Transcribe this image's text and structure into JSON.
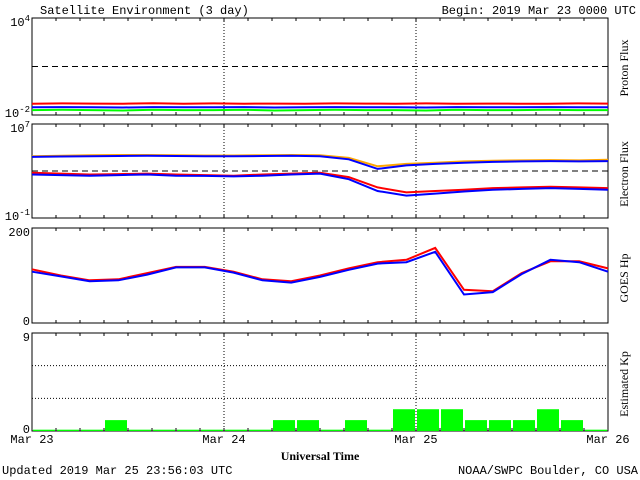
{
  "header": {
    "title": "Satellite Environment (3 day)",
    "begin": "Begin:  2019 Mar 23 0000 UTC"
  },
  "footer": {
    "updated": "Updated 2019 Mar 25 23:56:03 UTC",
    "credit": "NOAA/SWPC Boulder, CO USA",
    "xaxis_title": "Universal Time"
  },
  "x_ticks": [
    "Mar 23",
    "Mar 24",
    "Mar 25",
    "Mar 26"
  ],
  "colors": {
    "red": "#ff0000",
    "blue": "#0000ff",
    "green": "#00ff00",
    "orange": "#ffa500",
    "kp": "#00ff00"
  },
  "chart_data": [
    {
      "type": "line",
      "ylabel": "Proton Flux",
      "y_scale": "log",
      "ylim": [
        0.01,
        10000
      ],
      "ytick_labels": [
        "10^4",
        "10^-2"
      ],
      "x_range_days": [
        0,
        3
      ],
      "threshold": 10,
      "series": [
        {
          "color": "#ff0000",
          "values": [
            0.05,
            0.052,
            0.051,
            0.05,
            0.053,
            0.05,
            0.052,
            0.05,
            0.051,
            0.05,
            0.052,
            0.051,
            0.05,
            0.052,
            0.05,
            0.051,
            0.05,
            0.05,
            0.052,
            0.051
          ]
        },
        {
          "color": "#0000ff",
          "values": [
            0.03,
            0.031,
            0.03,
            0.029,
            0.031,
            0.03,
            0.03,
            0.031,
            0.029,
            0.03,
            0.031,
            0.03,
            0.03,
            0.029,
            0.031,
            0.03,
            0.03,
            0.031,
            0.03,
            0.03
          ]
        },
        {
          "color": "#00ff00",
          "values": [
            0.02,
            0.021,
            0.02,
            0.019,
            0.021,
            0.02,
            0.02,
            0.021,
            0.019,
            0.02,
            0.021,
            0.02,
            0.02,
            0.019,
            0.021,
            0.02,
            0.02,
            0.021,
            0.02,
            0.02
          ]
        }
      ]
    },
    {
      "type": "line",
      "ylabel": "Electron Flux",
      "y_scale": "log",
      "ylim": [
        0.1,
        10000000
      ],
      "ytick_labels": [
        "10^7",
        "10^-1"
      ],
      "x_range_days": [
        0,
        3
      ],
      "threshold": 1000,
      "series": [
        {
          "color": "#ffa500",
          "values": [
            18000,
            20000,
            22000,
            23000,
            23000,
            22000,
            21000,
            21000,
            22000,
            23000,
            22000,
            13000,
            2500,
            4000,
            5000,
            6500,
            7500,
            8000,
            8500,
            8000,
            9000
          ]
        },
        {
          "color": "#0000ff",
          "values": [
            16000,
            17000,
            18000,
            19000,
            20000,
            19000,
            18000,
            18000,
            19000,
            20000,
            18000,
            10000,
            1500,
            3000,
            4000,
            5000,
            6000,
            6500,
            7000,
            6500,
            7000
          ]
        },
        {
          "color": "#ff0000",
          "values": [
            700,
            600,
            500,
            550,
            600,
            500,
            450,
            400,
            500,
            600,
            700,
            300,
            40,
            15,
            20,
            25,
            35,
            40,
            45,
            40,
            35
          ]
        },
        {
          "color": "#0000ff",
          "values": [
            500,
            450,
            400,
            450,
            500,
            400,
            380,
            350,
            400,
            500,
            600,
            200,
            20,
            8,
            12,
            18,
            25,
            30,
            35,
            30,
            25
          ]
        }
      ]
    },
    {
      "type": "line",
      "ylabel": "GOES Hp",
      "ylim": [
        0,
        200
      ],
      "ytick_labels": [
        "200",
        "0"
      ],
      "x_range_days": [
        0,
        3
      ],
      "series": [
        {
          "color": "#ff0000",
          "values": [
            113,
            100,
            90,
            92,
            105,
            118,
            118,
            108,
            92,
            88,
            100,
            115,
            128,
            133,
            158,
            70,
            67,
            105,
            130,
            130,
            115
          ]
        },
        {
          "color": "#0000ff",
          "values": [
            108,
            98,
            88,
            90,
            102,
            117,
            117,
            106,
            90,
            85,
            97,
            112,
            125,
            128,
            150,
            60,
            65,
            103,
            133,
            128,
            108
          ]
        }
      ]
    },
    {
      "type": "bar",
      "ylabel": "Estimated Kp",
      "ylim": [
        0,
        9
      ],
      "ytick_labels": [
        "9",
        "0"
      ],
      "x_range_days": [
        0,
        3
      ],
      "values": [
        0,
        0,
        0,
        1,
        0,
        0,
        0,
        0,
        0,
        0,
        1,
        1,
        0,
        1,
        0,
        2,
        2,
        2,
        1,
        1,
        1,
        2,
        1,
        0
      ]
    }
  ]
}
